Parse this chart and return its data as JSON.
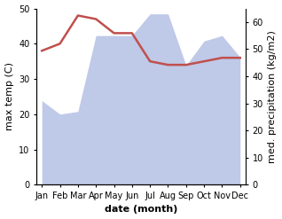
{
  "months": [
    "Jan",
    "Feb",
    "Mar",
    "Apr",
    "May",
    "Jun",
    "Jul",
    "Aug",
    "Sep",
    "Oct",
    "Nov",
    "Dec"
  ],
  "temperature": [
    38,
    40,
    48,
    47,
    43,
    43,
    35,
    34,
    34,
    35,
    36,
    36
  ],
  "precipitation": [
    31,
    26,
    27,
    55,
    55,
    55,
    63,
    63,
    44,
    53,
    55,
    47
  ],
  "temp_color": "#c0504d",
  "precip_fill_color": "#bfc9e8",
  "left_ylim": [
    0,
    50
  ],
  "right_ylim": [
    0,
    65
  ],
  "left_yticks": [
    0,
    10,
    20,
    30,
    40,
    50
  ],
  "right_yticks": [
    0,
    10,
    20,
    30,
    40,
    50,
    60
  ],
  "ylabel_left": "max temp (C)",
  "ylabel_right": "med. precipitation (kg/m2)",
  "xlabel": "date (month)",
  "bg_color": "#ffffff",
  "label_fontsize": 8,
  "tick_fontsize": 7,
  "linewidth": 1.8
}
